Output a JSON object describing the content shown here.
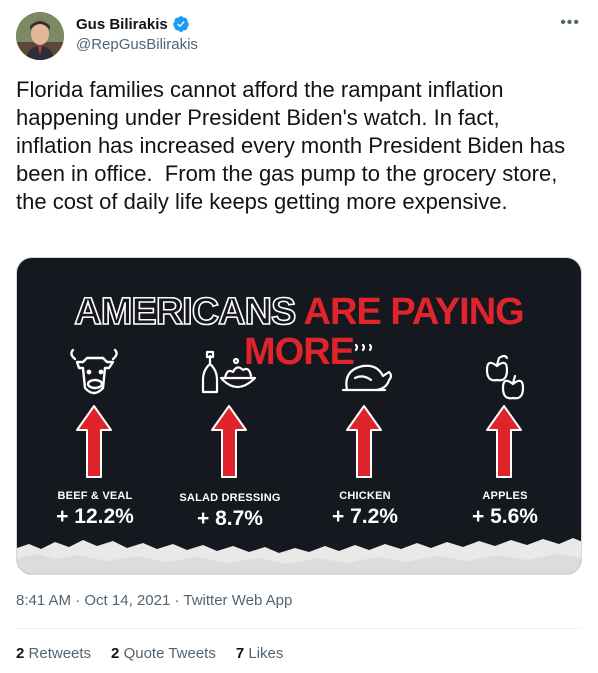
{
  "author": {
    "name": "Gus Bilirakis",
    "handle": "@RepGusBilirakis",
    "verified": true
  },
  "more_icon": "more-horizontal-icon",
  "tweet": {
    "text": "Florida families cannot afford the rampant inflation happening under President Biden's watch. In fact, inflation has increased every month President Biden has been in office.  From the gas pump to the grocery store, the cost of daily life keeps getting more expensive."
  },
  "media": {
    "headline_part1": "AMERICANS",
    "headline_part2": "ARE PAYING MORE",
    "items": [
      {
        "icon": "cow-icon",
        "label": "BEEF & VEAL",
        "value": "+ 12.2%"
      },
      {
        "icon": "salad-dressing-icon",
        "label": "SALAD DRESSING",
        "value": "+ 8.7%"
      },
      {
        "icon": "chicken-icon",
        "label": "CHICKEN",
        "value": "+ 7.2%"
      },
      {
        "icon": "apples-icon",
        "label": "APPLES",
        "value": "+ 5.6%"
      }
    ],
    "colors": {
      "background": "#16181f",
      "accent": "#e0242b",
      "text": "#ffffff"
    }
  },
  "meta": {
    "time": "8:41 AM",
    "date": "Oct 14, 2021",
    "source": "Twitter Web App"
  },
  "stats": {
    "retweets_count": "2",
    "retweets_label": "Retweets",
    "quotes_count": "2",
    "quotes_label": "Quote Tweets",
    "likes_count": "7",
    "likes_label": "Likes"
  },
  "colors": {
    "verified_blue": "#1d9bf0",
    "secondary_text": "#536471",
    "primary_text": "#0f1419"
  }
}
